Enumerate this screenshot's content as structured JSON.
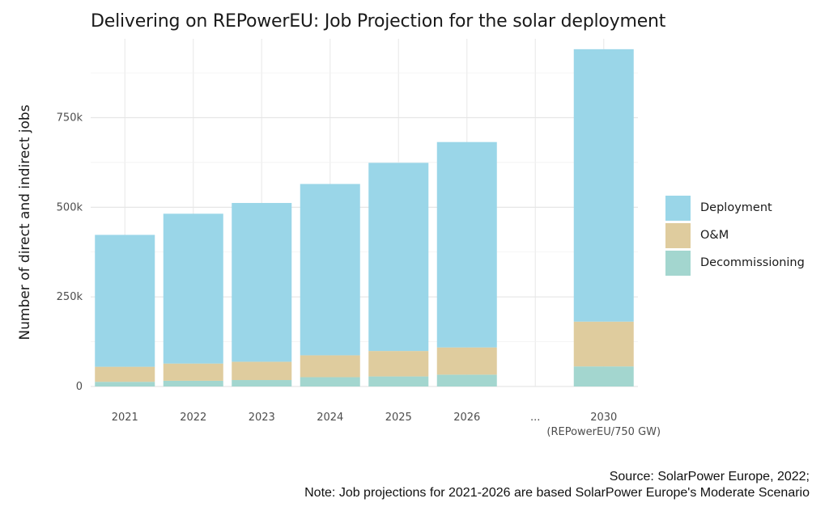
{
  "chart_data": {
    "type": "bar",
    "stacked": true,
    "title": "Delivering on REPowerEU: Job Projection for the solar deployment",
    "ylabel": "Number of direct and indirect jobs",
    "xlabel": "",
    "categories": [
      "2021",
      "2022",
      "2023",
      "2024",
      "2025",
      "2026",
      "...",
      "2030"
    ],
    "category_sublabels": [
      "",
      "",
      "",
      "",
      "",
      "",
      "",
      "(REPowerEU/750 GW)"
    ],
    "ylim": [
      0,
      970000
    ],
    "yticks": [
      0,
      250000,
      500000,
      750000
    ],
    "ytick_labels": [
      "0",
      "250k",
      "500k",
      "750k"
    ],
    "grid": true,
    "legend_position": "right",
    "series": [
      {
        "name": "Decommissioning",
        "color": "#a3d6cf",
        "values": [
          13000,
          16000,
          18000,
          26000,
          28000,
          33000,
          null,
          56000
        ]
      },
      {
        "name": "O&M",
        "color": "#dfcc9e",
        "values": [
          42000,
          48000,
          51000,
          61000,
          71000,
          76000,
          null,
          125000
        ]
      },
      {
        "name": "Deployment",
        "color": "#9ad6e8",
        "values": [
          368000,
          418000,
          443000,
          478000,
          525000,
          573000,
          null,
          760000
        ]
      }
    ]
  },
  "legend": [
    {
      "label": "Deployment",
      "color": "#9ad6e8"
    },
    {
      "label": "O&M",
      "color": "#dfcc9e"
    },
    {
      "label": "Decommissioning",
      "color": "#a3d6cf"
    }
  ],
  "source": {
    "line1": "Source: SolarPower Europe, 2022;",
    "line2": "Note: Job projections for 2021-2026 are based SolarPower Europe's Moderate Scenario"
  }
}
